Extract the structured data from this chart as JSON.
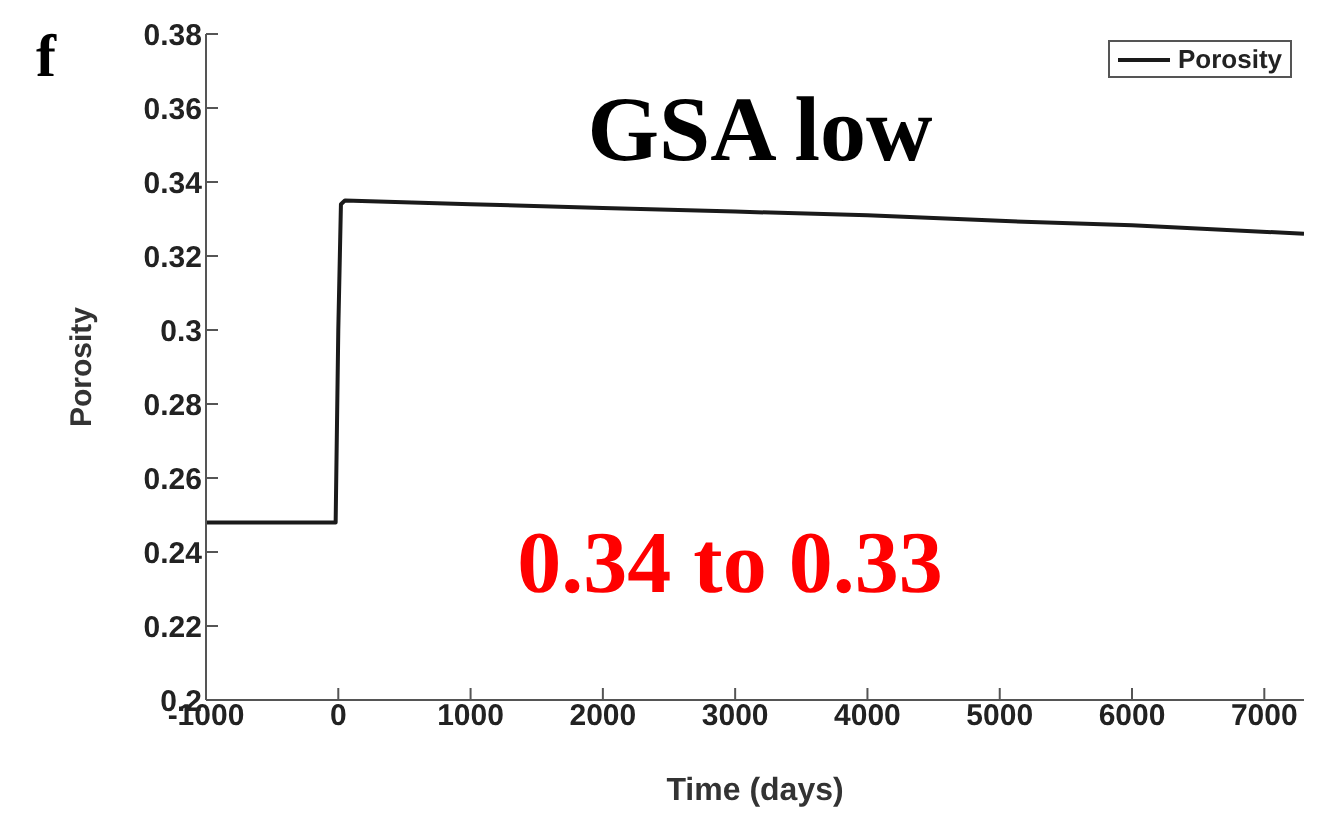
{
  "chart_data": {
    "type": "line",
    "xlabel": "Time (days)",
    "ylabel": "Porosity",
    "annotations": [
      "f",
      "GSA low",
      "0.34 to 0.33"
    ],
    "series": [
      {
        "name": "Porosity",
        "color": "#1a1a1a",
        "x": [
          -1000,
          -20,
          0,
          20,
          50,
          1000,
          2000,
          3000,
          4000,
          5000,
          6000,
          7300
        ],
        "values": [
          0.248,
          0.248,
          0.3,
          0.334,
          0.335,
          0.334,
          0.333,
          0.332,
          0.331,
          0.3295,
          0.3283,
          0.326
        ]
      }
    ],
    "xlim": [
      -1000,
      7300
    ],
    "xticks": [
      -1000,
      0,
      1000,
      2000,
      3000,
      4000,
      5000,
      6000,
      7000
    ],
    "ylim": [
      0.2,
      0.38
    ],
    "yticks": [
      0.2,
      0.22,
      0.24,
      0.26,
      0.28,
      0.3,
      0.32,
      0.34,
      0.36,
      0.38
    ],
    "grid": false,
    "legend": "top right",
    "marker": "none",
    "line_style": "solid"
  }
}
